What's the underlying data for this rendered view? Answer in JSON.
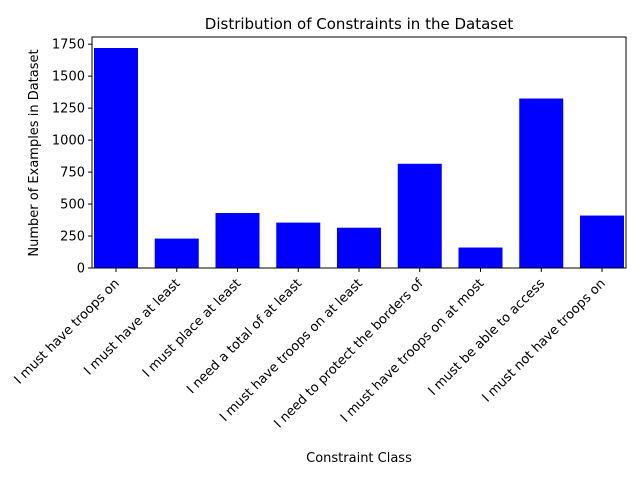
{
  "chart_data": {
    "type": "bar",
    "title": "Distribution of Constraints in the Dataset",
    "xlabel": "Constraint Class",
    "ylabel": "Number of Examples in Dataset",
    "categories": [
      "I must have troops on",
      "I must have at least",
      "I must place at least",
      "I need a total of at least",
      "I must have troops on at least",
      "I need to protect the borders of",
      "I must have troops on at most",
      "I must be able to access",
      "I must not have troops on"
    ],
    "values": [
      1720,
      230,
      430,
      355,
      315,
      815,
      160,
      1325,
      410
    ],
    "ylim": [
      0,
      1806
    ],
    "yticks": [
      0,
      250,
      500,
      750,
      1000,
      1250,
      1500,
      1750
    ],
    "bar_color": "#0000ff",
    "grid": false,
    "legend": "none"
  }
}
